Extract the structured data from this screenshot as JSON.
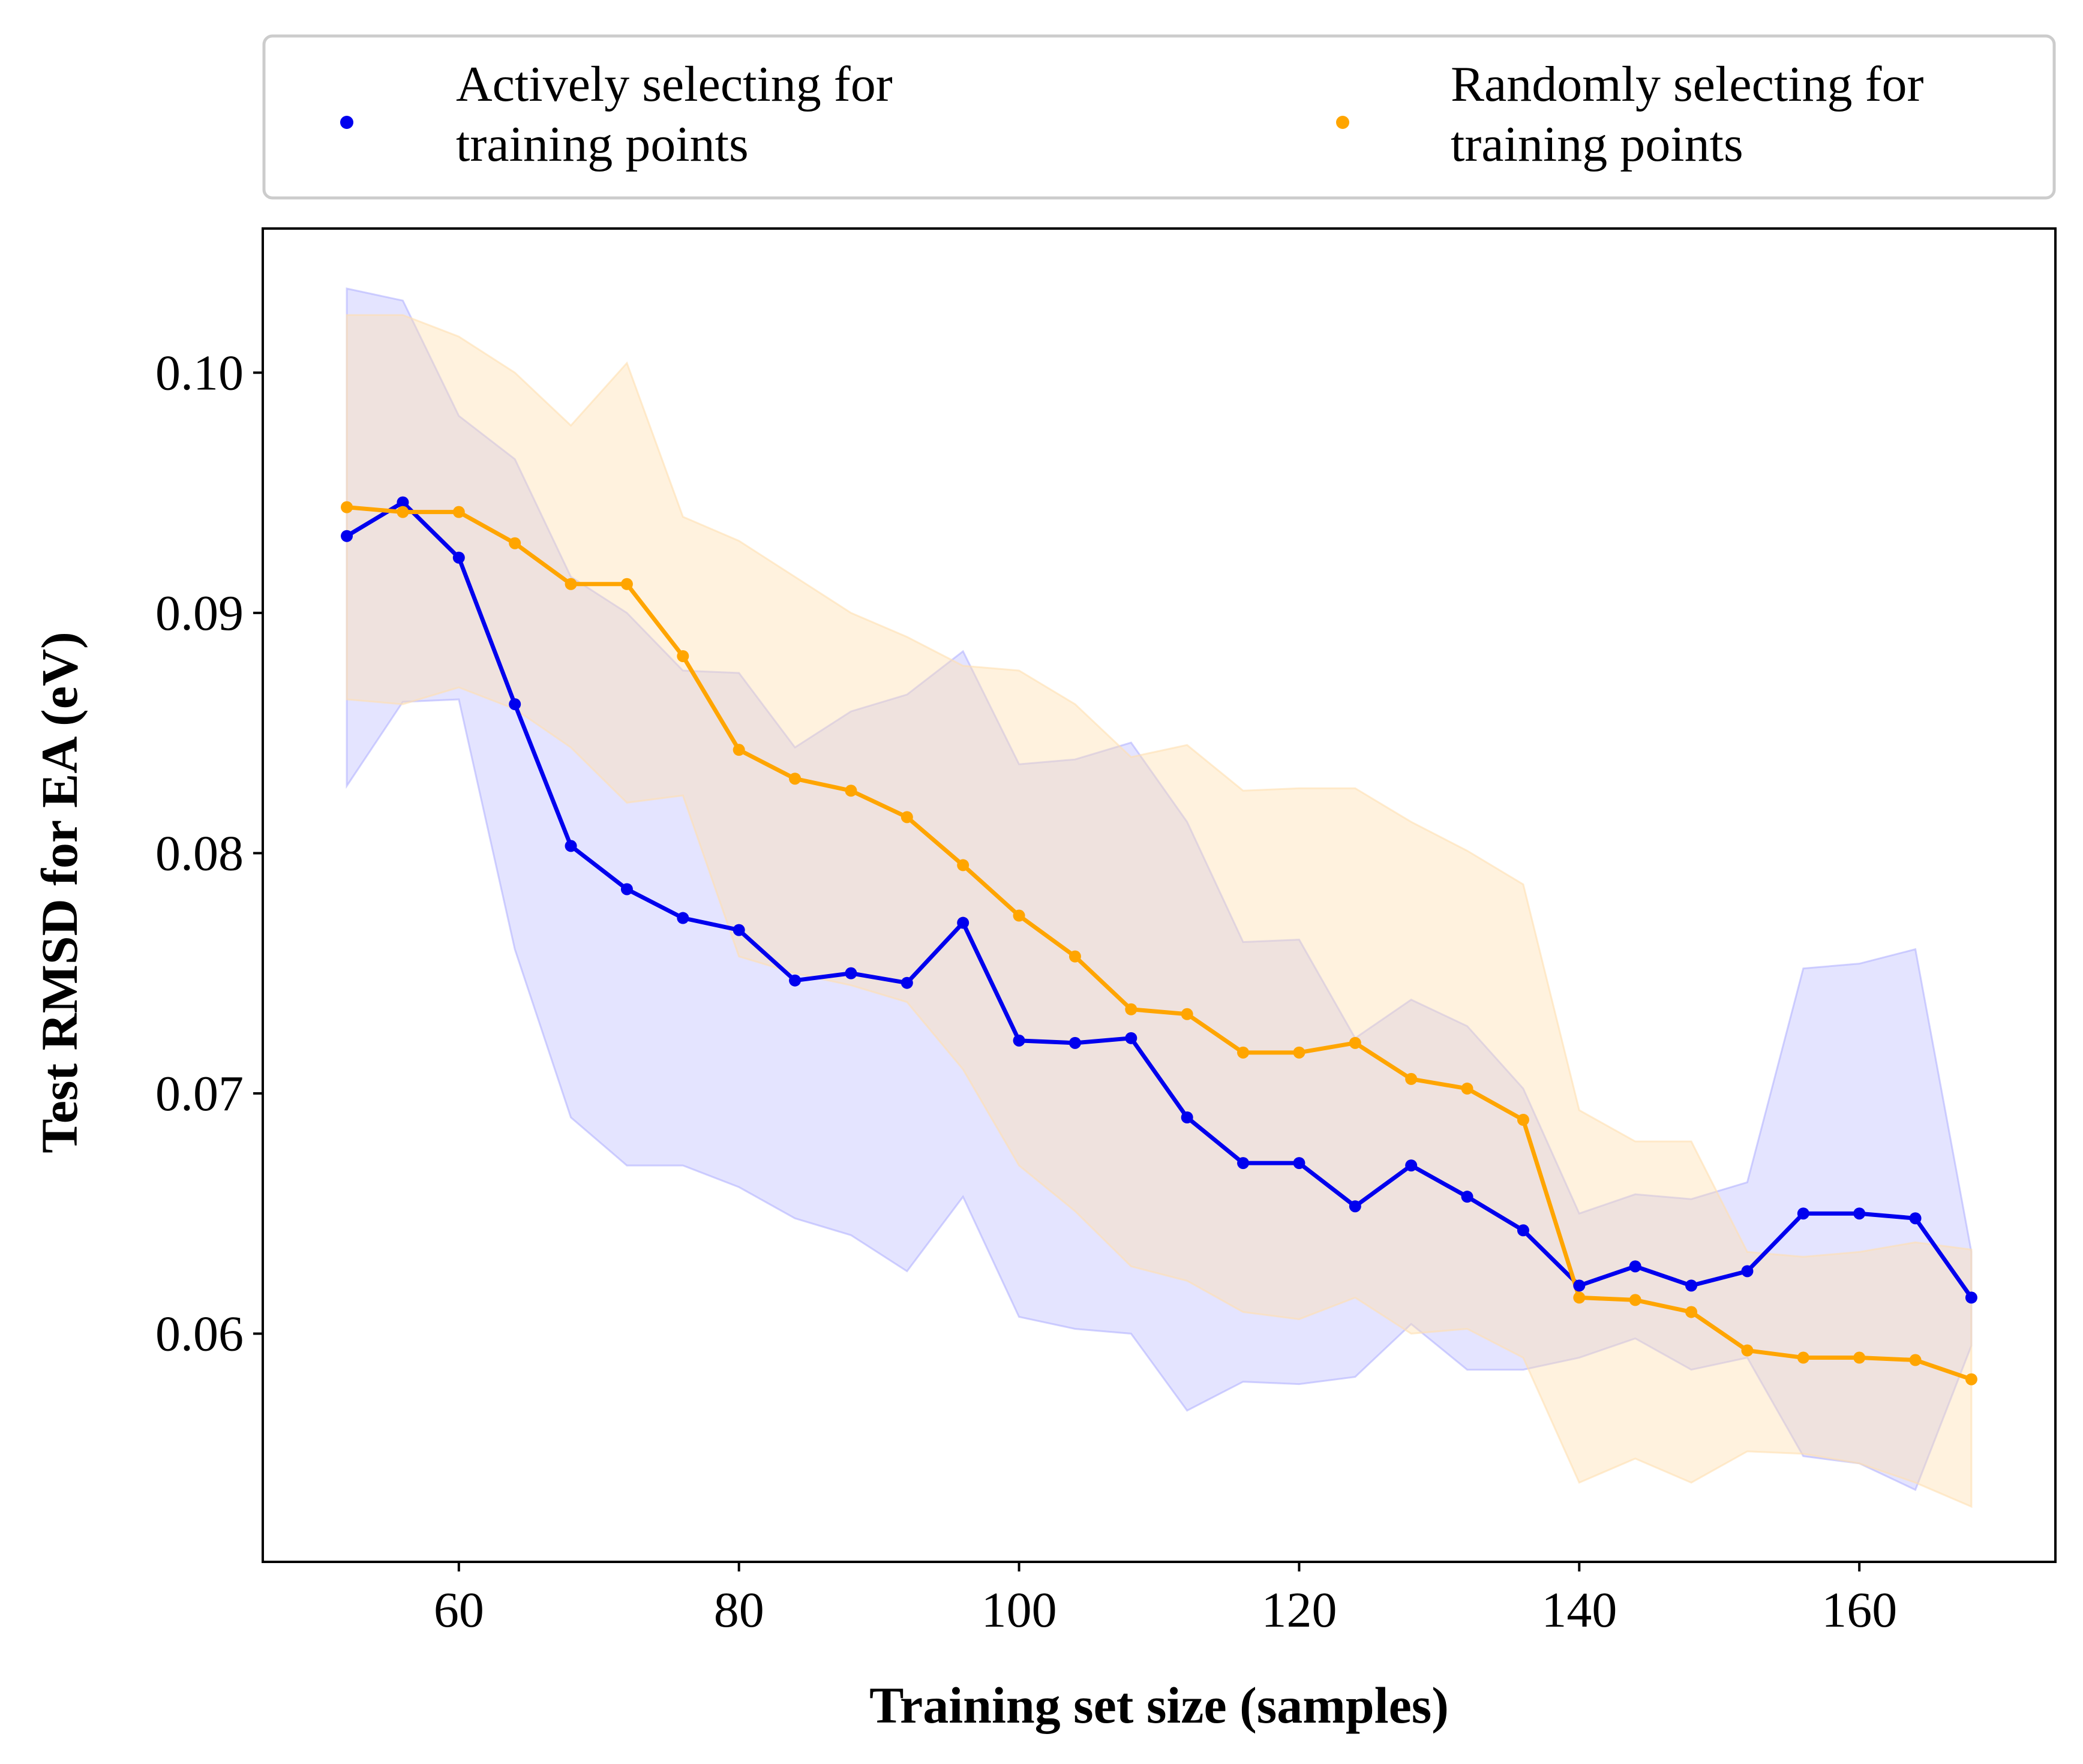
{
  "chart_data": {
    "type": "line",
    "xlabel": "Training set size (samples)",
    "ylabel": "Test RMSD for EA (eV)",
    "xlim": [
      46,
      174
    ],
    "ylim": [
      0.0505,
      0.106
    ],
    "xticks": [
      60,
      80,
      100,
      120,
      140,
      160
    ],
    "yticks": [
      0.06,
      0.07,
      0.08,
      0.09,
      0.1
    ],
    "xtick_labels": [
      "60",
      "80",
      "100",
      "120",
      "140",
      "160"
    ],
    "ytick_labels": [
      "0.06",
      "0.07",
      "0.08",
      "0.09",
      "0.10"
    ],
    "grid": false,
    "legend": {
      "placement": "above plot, two columns",
      "columns": 2
    },
    "x": [
      52,
      56,
      60,
      64,
      68,
      72,
      76,
      80,
      84,
      88,
      92,
      96,
      100,
      104,
      108,
      112,
      116,
      120,
      124,
      128,
      132,
      136,
      140,
      144,
      148,
      152,
      156,
      160,
      164,
      168
    ],
    "series": [
      {
        "name_lines": [
          "Actively selecting for",
          "training points"
        ],
        "color": "#0000ee",
        "band_color": "#b3b3ff",
        "values": [
          0.0932,
          0.0946,
          0.0923,
          0.0862,
          0.0803,
          0.0785,
          0.0773,
          0.0768,
          0.0747,
          0.075,
          0.0746,
          0.0771,
          0.0722,
          0.0721,
          0.0723,
          0.069,
          0.0671,
          0.0671,
          0.0653,
          0.067,
          0.0657,
          0.0643,
          0.062,
          0.0628,
          0.062,
          0.0626,
          0.065,
          0.065,
          0.0648,
          0.0615
        ],
        "lower": [
          0.0828,
          0.0863,
          0.0864,
          0.076,
          0.069,
          0.067,
          0.067,
          0.0661,
          0.0648,
          0.0641,
          0.0626,
          0.0657,
          0.0607,
          0.0602,
          0.06,
          0.0568,
          0.058,
          0.0579,
          0.0582,
          0.0604,
          0.0585,
          0.0585,
          0.059,
          0.0598,
          0.0585,
          0.059,
          0.0549,
          0.0546,
          0.0535,
          0.0595
        ],
        "upper": [
          0.1035,
          0.103,
          0.0982,
          0.0964,
          0.0915,
          0.09,
          0.0876,
          0.0875,
          0.0844,
          0.0859,
          0.0866,
          0.0884,
          0.0837,
          0.0839,
          0.0846,
          0.0813,
          0.0763,
          0.0764,
          0.0723,
          0.0739,
          0.0728,
          0.0702,
          0.065,
          0.0658,
          0.0656,
          0.0663,
          0.0752,
          0.0754,
          0.076,
          0.0634
        ]
      },
      {
        "name_lines": [
          "Randomly selecting for",
          "training points"
        ],
        "color": "#ffa500",
        "band_color": "#ffe0b0",
        "values": [
          0.0944,
          0.0942,
          0.0942,
          0.0929,
          0.0912,
          0.0912,
          0.0882,
          0.0843,
          0.0831,
          0.0826,
          0.0815,
          0.0795,
          0.0774,
          0.0757,
          0.0735,
          0.0733,
          0.0717,
          0.0717,
          0.0721,
          0.0706,
          0.0702,
          0.0689,
          0.0615,
          0.0614,
          0.0609,
          0.0593,
          0.059,
          0.059,
          0.0589,
          0.0581
        ],
        "lower": [
          0.0864,
          0.0862,
          0.0869,
          0.086,
          0.0844,
          0.0821,
          0.0824,
          0.0757,
          0.075,
          0.0745,
          0.0738,
          0.071,
          0.067,
          0.0651,
          0.0628,
          0.0622,
          0.0609,
          0.0606,
          0.0615,
          0.06,
          0.0602,
          0.059,
          0.0538,
          0.0548,
          0.0538,
          0.0551,
          0.055,
          0.0546,
          0.0538,
          0.0528
        ],
        "upper": [
          0.1024,
          0.1024,
          0.1015,
          0.1,
          0.0978,
          0.1004,
          0.094,
          0.093,
          0.0915,
          0.09,
          0.089,
          0.0878,
          0.0876,
          0.0862,
          0.084,
          0.0845,
          0.0826,
          0.0827,
          0.0827,
          0.0813,
          0.0801,
          0.0787,
          0.0693,
          0.068,
          0.068,
          0.0634,
          0.0632,
          0.0634,
          0.0638,
          0.0635
        ]
      }
    ]
  }
}
